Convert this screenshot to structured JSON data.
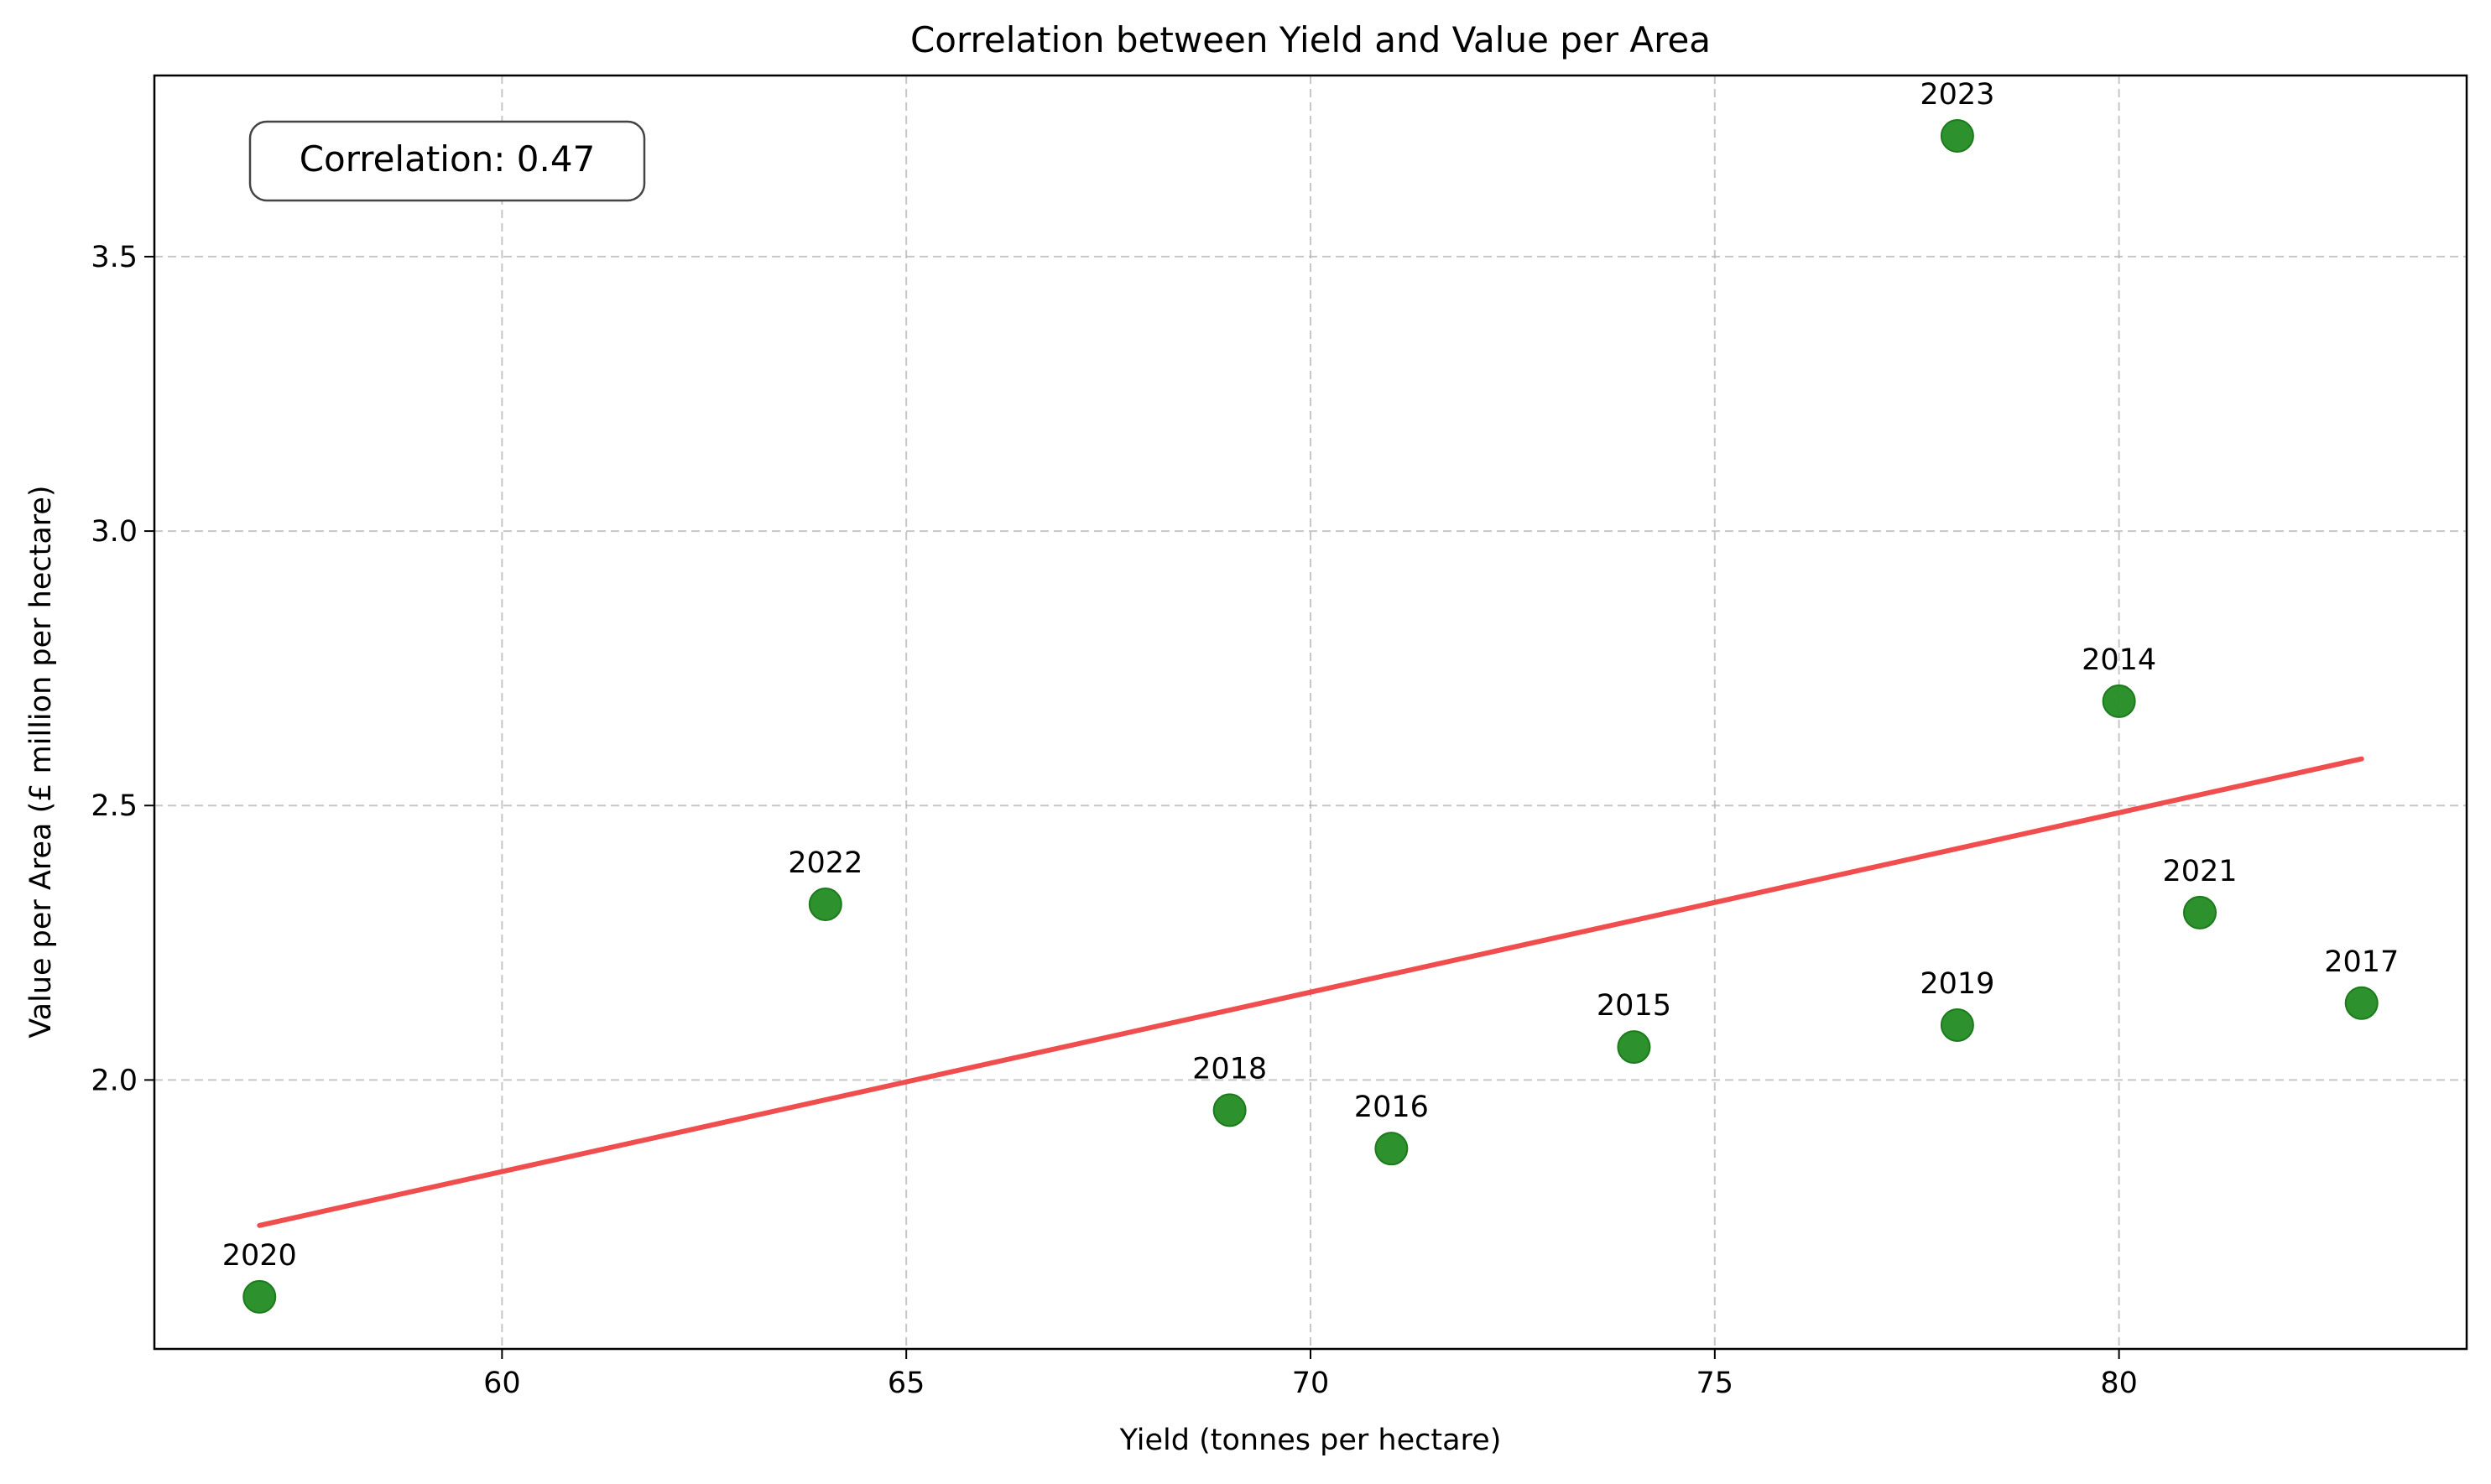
{
  "chart_data": {
    "type": "scatter",
    "title": "Correlation between Yield and Value per Area",
    "xlabel": "Yield (tonnes per hectare)",
    "ylabel": "Value per Area (£ million per hectare)",
    "xlim": [
      55.7,
      84.3
    ],
    "ylim": [
      1.51,
      3.83
    ],
    "xticks": [
      60,
      65,
      70,
      75,
      80
    ],
    "yticks": [
      2.0,
      2.5,
      3.0,
      3.5
    ],
    "ytick_labels": [
      "2.0",
      "2.5",
      "3.0",
      "3.5"
    ],
    "grid": true,
    "points": [
      {
        "label": "2014",
        "x": 80,
        "y": 2.69
      },
      {
        "label": "2015",
        "x": 74,
        "y": 2.06
      },
      {
        "label": "2016",
        "x": 71,
        "y": 1.875
      },
      {
        "label": "2017",
        "x": 83,
        "y": 2.14
      },
      {
        "label": "2018",
        "x": 69,
        "y": 1.945
      },
      {
        "label": "2019",
        "x": 78,
        "y": 2.1
      },
      {
        "label": "2020",
        "x": 57,
        "y": 1.605
      },
      {
        "label": "2021",
        "x": 81,
        "y": 2.305
      },
      {
        "label": "2022",
        "x": 64,
        "y": 2.32
      },
      {
        "label": "2023",
        "x": 78,
        "y": 3.72
      }
    ],
    "trendline": {
      "x": [
        57,
        83
      ],
      "y": [
        1.735,
        2.585
      ]
    },
    "annotation": "Correlation: 0.47",
    "point_color": "#228B22",
    "line_color": "#F04545"
  }
}
